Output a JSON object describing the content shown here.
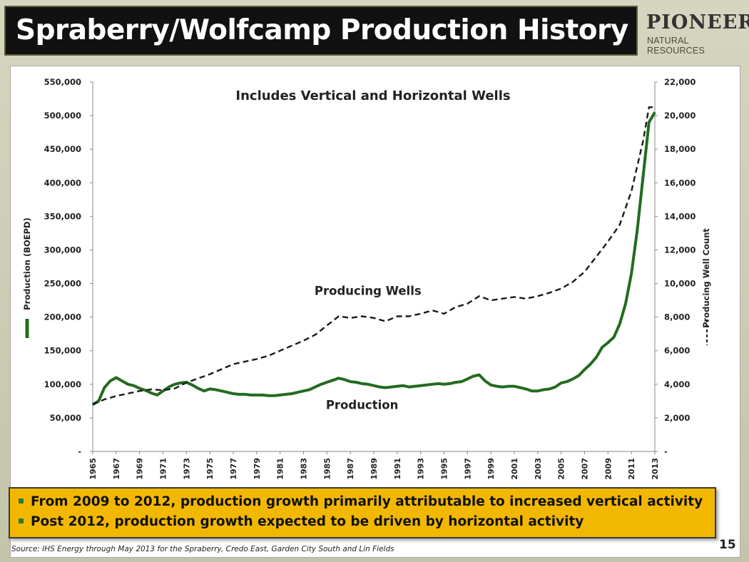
{
  "slide": {
    "title": "Spraberry/Wolfcamp Production History",
    "logo_main": "PIONEER",
    "logo_sub": "NATURAL RESOURCES",
    "page_number": "15",
    "source": "Source: IHS Energy through May 2013 for the Spraberry, Credo East, Garden City South and Lin Fields"
  },
  "callout": {
    "bullets": [
      "From 2009 to 2012, production growth primarily attributable to increased vertical activity",
      "Post 2012, production growth expected to be driven by horizontal activity"
    ]
  },
  "colors": {
    "production": "#236b1f",
    "wells": "#1a1a1a",
    "callout_bg": "#f2b800",
    "bullet_marker": "#2e7d32"
  },
  "chart_data": {
    "type": "line",
    "title": "Includes Vertical and Horizontal Wells",
    "xlabel": "",
    "ylabel": "Production (BOEPD)",
    "y2label": "Producing Well Count",
    "xlim": [
      1965,
      2013
    ],
    "ylim": [
      0,
      550000
    ],
    "y2lim": [
      0,
      22000
    ],
    "grid": false,
    "x_ticks": [
      "1965",
      "1967",
      "1969",
      "1971",
      "1973",
      "1975",
      "1977",
      "1979",
      "1981",
      "1983",
      "1985",
      "1987",
      "1989",
      "1991",
      "1993",
      "1995",
      "1997",
      "1999",
      "2001",
      "2003",
      "2005",
      "2007",
      "2009",
      "2011",
      "2013"
    ],
    "y_ticks": [
      "-",
      "50,000",
      "100,000",
      "150,000",
      "200,000",
      "250,000",
      "300,000",
      "350,000",
      "400,000",
      "450,000",
      "500,000",
      "550,000"
    ],
    "y2_ticks": [
      "-",
      "2,000",
      "4,000",
      "6,000",
      "8,000",
      "10,000",
      "12,000",
      "14,000",
      "16,000",
      "18,000",
      "20,000",
      "22,000"
    ],
    "annotations": [
      {
        "text": "Producing Wells",
        "x": 1988.5,
        "y": 233000
      },
      {
        "text": "Production",
        "x": 1988,
        "y": 63000
      }
    ],
    "series": [
      {
        "name": "Production",
        "axis": "left",
        "style": "solid",
        "x": [
          1965,
          1965.5,
          1966,
          1966.5,
          1967,
          1967.5,
          1968,
          1968.5,
          1969,
          1969.5,
          1970,
          1970.5,
          1971,
          1971.5,
          1972,
          1972.5,
          1973,
          1973.5,
          1974,
          1974.5,
          1975,
          1975.5,
          1976,
          1976.5,
          1977,
          1977.5,
          1978,
          1978.5,
          1979,
          1979.5,
          1980,
          1980.5,
          1981,
          1981.5,
          1982,
          1982.5,
          1983,
          1983.5,
          1984,
          1984.5,
          1985,
          1985.5,
          1986,
          1986.5,
          1987,
          1987.5,
          1988,
          1988.5,
          1989,
          1989.5,
          1990,
          1990.5,
          1991,
          1991.5,
          1992,
          1992.5,
          1993,
          1993.5,
          1994,
          1994.5,
          1995,
          1995.5,
          1996,
          1996.5,
          1997,
          1997.5,
          1998,
          1998.5,
          1999,
          1999.5,
          2000,
          2000.5,
          2001,
          2001.5,
          2002,
          2002.5,
          2003,
          2003.5,
          2004,
          2004.5,
          2005,
          2005.5,
          2006,
          2006.5,
          2007,
          2007.5,
          2008,
          2008.5,
          2009,
          2009.5,
          2010,
          2010.5,
          2011,
          2011.5,
          2012,
          2012.5,
          2013
        ],
        "values": [
          70000,
          75000,
          95000,
          105000,
          110000,
          105000,
          100000,
          98000,
          94000,
          91000,
          87000,
          84000,
          90000,
          96000,
          100000,
          102000,
          103000,
          99000,
          94000,
          90000,
          93000,
          92000,
          90000,
          88000,
          86000,
          85000,
          85000,
          84000,
          84000,
          84000,
          83000,
          83000,
          84000,
          85000,
          86000,
          88000,
          90000,
          92000,
          96000,
          100000,
          103000,
          106000,
          109000,
          107000,
          104000,
          103000,
          101000,
          100000,
          98000,
          96000,
          95000,
          96000,
          97000,
          98000,
          96000,
          97000,
          98000,
          99000,
          100000,
          101000,
          100000,
          101000,
          103000,
          104000,
          108000,
          112000,
          114000,
          105000,
          99000,
          97000,
          96000,
          97000,
          97000,
          95000,
          93000,
          90000,
          90000,
          92000,
          93000,
          96000,
          102000,
          104000,
          108000,
          113000,
          122000,
          130000,
          140000,
          155000,
          162000,
          170000,
          190000,
          220000,
          265000,
          330000,
          410000,
          490000,
          505000
        ]
      },
      {
        "name": "Producing Wells",
        "axis": "right",
        "style": "dashed",
        "x": [
          1965,
          1966,
          1967,
          1968,
          1969,
          1970,
          1971,
          1972,
          1973,
          1974,
          1975,
          1976,
          1977,
          1978,
          1979,
          1980,
          1981,
          1982,
          1983,
          1984,
          1985,
          1986,
          1987,
          1988,
          1989,
          1990,
          1991,
          1992,
          1993,
          1994,
          1995,
          1996,
          1997,
          1998,
          1999,
          2000,
          2001,
          2002,
          2003,
          2004,
          2005,
          2006,
          2007,
          2008,
          2009,
          2010,
          2011,
          2012,
          2012.5,
          2013
        ],
        "values": [
          2800,
          3100,
          3300,
          3450,
          3600,
          3700,
          3650,
          3750,
          4100,
          4350,
          4600,
          4900,
          5200,
          5350,
          5500,
          5700,
          6000,
          6300,
          6600,
          6950,
          7500,
          8050,
          7950,
          8050,
          7950,
          7750,
          8050,
          8050,
          8200,
          8400,
          8200,
          8600,
          8800,
          9250,
          9000,
          9100,
          9200,
          9100,
          9250,
          9450,
          9700,
          10100,
          10700,
          11600,
          12500,
          13500,
          15500,
          18500,
          20500,
          20500
        ]
      }
    ]
  }
}
